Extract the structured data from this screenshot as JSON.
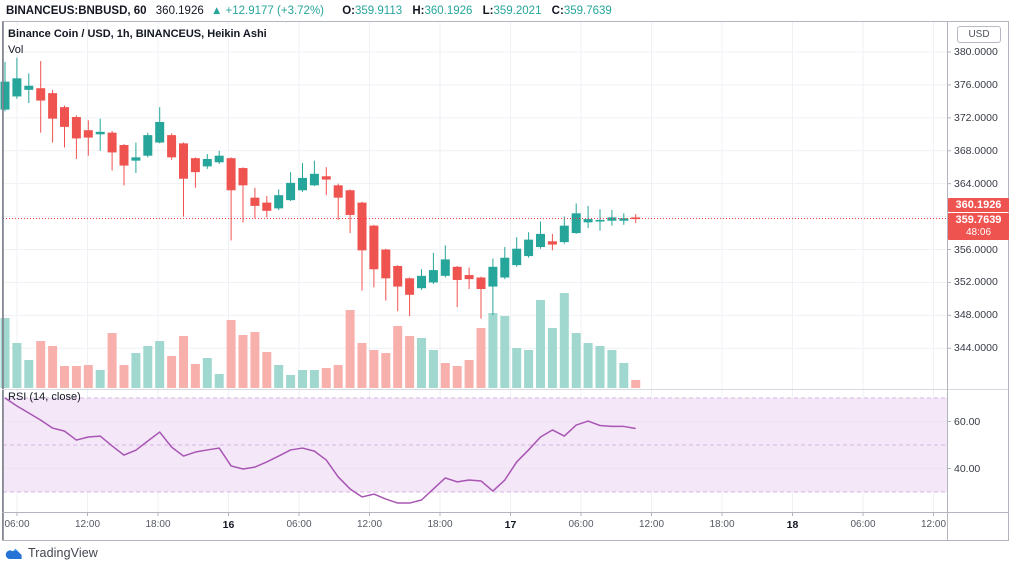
{
  "header": {
    "symbol": "BINANCEUS:BNBUSD, 60",
    "last": "360.1926",
    "direction": "▲",
    "change": "+12.9177 (+3.72%)",
    "o_label": "O:",
    "o": "359.9113",
    "h_label": "H:",
    "h": "360.1926",
    "l_label": "L:",
    "l": "359.2021",
    "c_label": "C:",
    "c": "359.7639"
  },
  "legend": {
    "title": "Binance Coin / USD, 1h, BINANCEUS, Heikin Ashi",
    "vol_label": "Vol",
    "rsi_label": "RSI (14, close)"
  },
  "price_axis": {
    "currency": "USD",
    "labels": [
      "380.0000",
      "376.0000",
      "372.0000",
      "368.0000",
      "364.0000",
      "356.0000",
      "352.0000",
      "348.0000",
      "344.0000"
    ],
    "values": [
      380,
      376,
      372,
      368,
      364,
      356,
      352,
      348,
      344
    ],
    "badges": [
      {
        "text": "360.1926",
        "price": 360.1926
      },
      {
        "text": "359.7639",
        "countdown": "48:06",
        "price": 359.7639
      }
    ]
  },
  "rsi_axis": {
    "labels": [
      "60.00",
      "40.00"
    ],
    "values": [
      60,
      40
    ]
  },
  "footer": {
    "brand": "TradingView"
  },
  "colors": {
    "up": "#26a69a",
    "down": "#ef5350",
    "vol_up": "#a0d7cf",
    "vol_down": "#f8b0ad",
    "rsi_line": "#a855b4",
    "rsi_band": "#f4e7f8",
    "rsi_dash": "#d9b6e3",
    "price_line": "#f23645",
    "grid": "#eef1f6",
    "frame": "#b2b5be",
    "accent_text": "#26a69a"
  },
  "chart_data": {
    "type": "candlestick",
    "title": "Binance Coin / USD, 1h, BINANCEUS, Heikin Ashi",
    "symbol": "BINANCEUS:BNBUSD",
    "interval_minutes": 60,
    "style": "Heikin Ashi",
    "price_range_visible": [
      344,
      380
    ],
    "last_price": 359.7639,
    "price_line": 359.7639,
    "rsi_levels": {
      "band": [
        30,
        70
      ],
      "mid": 50,
      "grid": [
        40,
        60
      ]
    },
    "time_ticks": [
      {
        "label": "06:00",
        "bold": false
      },
      {
        "label": "12:00",
        "bold": false
      },
      {
        "label": "18:00",
        "bold": false
      },
      {
        "label": "16",
        "bold": true
      },
      {
        "label": "06:00",
        "bold": false
      },
      {
        "label": "12:00",
        "bold": false
      },
      {
        "label": "18:00",
        "bold": false
      },
      {
        "label": "17",
        "bold": true
      },
      {
        "label": "06:00",
        "bold": false
      },
      {
        "label": "12:00",
        "bold": false
      },
      {
        "label": "18:00",
        "bold": false
      },
      {
        "label": "18",
        "bold": true
      },
      {
        "label": "06:00",
        "bold": false
      },
      {
        "label": "12:00",
        "bold": false
      }
    ],
    "candles": [
      [
        373.0,
        378.8,
        372.8,
        376.4
      ],
      [
        374.6,
        379.3,
        374.3,
        376.8
      ],
      [
        375.4,
        377.4,
        373.8,
        375.9
      ],
      [
        375.6,
        378.9,
        370.2,
        374.1
      ],
      [
        375.0,
        375.4,
        369.0,
        371.9
      ],
      [
        373.3,
        373.5,
        368.4,
        370.9
      ],
      [
        372.1,
        372.3,
        367.0,
        369.5
      ],
      [
        370.5,
        371.7,
        367.4,
        369.6
      ],
      [
        370.0,
        371.9,
        368.0,
        370.3
      ],
      [
        370.2,
        370.4,
        365.6,
        367.8
      ],
      [
        368.7,
        368.8,
        363.8,
        366.2
      ],
      [
        366.8,
        369.0,
        365.3,
        367.2
      ],
      [
        367.4,
        370.2,
        367.2,
        369.9
      ],
      [
        369.0,
        373.3,
        368.9,
        371.5
      ],
      [
        369.9,
        370.1,
        366.9,
        367.2
      ],
      [
        368.9,
        369.0,
        360.0,
        364.6
      ],
      [
        367.1,
        367.2,
        363.5,
        365.4
      ],
      [
        366.1,
        367.6,
        365.8,
        367.0
      ],
      [
        366.6,
        368.0,
        366.4,
        367.4
      ],
      [
        367.1,
        367.2,
        357.1,
        363.2
      ],
      [
        365.9,
        366.0,
        359.3,
        363.8
      ],
      [
        362.3,
        363.5,
        359.8,
        361.3
      ],
      [
        361.7,
        362.5,
        359.9,
        360.7
      ],
      [
        361.0,
        363.3,
        360.8,
        362.6
      ],
      [
        362.0,
        365.4,
        361.9,
        364.1
      ],
      [
        363.2,
        366.5,
        363.0,
        364.7
      ],
      [
        363.8,
        366.8,
        363.7,
        365.2
      ],
      [
        364.9,
        366.0,
        362.6,
        364.5
      ],
      [
        363.8,
        364.0,
        359.6,
        362.3
      ],
      [
        363.2,
        363.3,
        358.0,
        360.2
      ],
      [
        361.7,
        361.8,
        351.0,
        355.9
      ],
      [
        358.9,
        359.0,
        351.4,
        353.6
      ],
      [
        356.0,
        356.1,
        349.8,
        352.5
      ],
      [
        354.0,
        354.1,
        348.5,
        351.5
      ],
      [
        352.5,
        352.6,
        347.9,
        350.5
      ],
      [
        351.3,
        353.6,
        351.1,
        352.8
      ],
      [
        352.0,
        355.6,
        351.8,
        353.5
      ],
      [
        352.8,
        356.5,
        352.6,
        354.8
      ],
      [
        353.9,
        354.0,
        349.0,
        352.3
      ],
      [
        352.9,
        353.8,
        351.2,
        352.4
      ],
      [
        352.6,
        352.7,
        347.6,
        351.2
      ],
      [
        351.5,
        354.9,
        348.0,
        353.9
      ],
      [
        352.6,
        356.3,
        352.4,
        355.0
      ],
      [
        354.1,
        357.5,
        353.9,
        356.1
      ],
      [
        355.2,
        358.1,
        355.0,
        357.2
      ],
      [
        356.3,
        359.4,
        356.1,
        357.9
      ],
      [
        357.0,
        357.9,
        355.9,
        356.6
      ],
      [
        356.9,
        360.0,
        356.7,
        358.9
      ],
      [
        358.0,
        361.6,
        357.9,
        360.4
      ],
      [
        359.3,
        361.3,
        358.6,
        359.7
      ],
      [
        359.4,
        360.9,
        358.3,
        359.6
      ],
      [
        359.5,
        360.8,
        358.9,
        359.9
      ],
      [
        359.5,
        360.4,
        359.0,
        359.8
      ],
      [
        359.9,
        360.3,
        359.2,
        359.7
      ]
    ],
    "volume": [
      [
        70,
        1
      ],
      [
        45,
        1
      ],
      [
        28,
        1
      ],
      [
        47,
        0
      ],
      [
        42,
        0
      ],
      [
        22,
        0
      ],
      [
        22,
        0
      ],
      [
        23,
        0
      ],
      [
        18,
        1
      ],
      [
        55,
        0
      ],
      [
        23,
        0
      ],
      [
        35,
        1
      ],
      [
        42,
        1
      ],
      [
        47,
        1
      ],
      [
        32,
        0
      ],
      [
        52,
        0
      ],
      [
        24,
        0
      ],
      [
        30,
        1
      ],
      [
        14,
        1
      ],
      [
        68,
        0
      ],
      [
        53,
        0
      ],
      [
        56,
        0
      ],
      [
        36,
        0
      ],
      [
        23,
        1
      ],
      [
        13,
        1
      ],
      [
        18,
        1
      ],
      [
        18,
        1
      ],
      [
        20,
        0
      ],
      [
        23,
        0
      ],
      [
        78,
        0
      ],
      [
        45,
        0
      ],
      [
        38,
        0
      ],
      [
        35,
        0
      ],
      [
        62,
        0
      ],
      [
        52,
        0
      ],
      [
        50,
        1
      ],
      [
        38,
        1
      ],
      [
        25,
        0
      ],
      [
        22,
        0
      ],
      [
        28,
        0
      ],
      [
        60,
        0
      ],
      [
        75,
        1
      ],
      [
        72,
        1
      ],
      [
        40,
        1
      ],
      [
        38,
        1
      ],
      [
        88,
        1
      ],
      [
        60,
        1
      ],
      [
        95,
        1
      ],
      [
        55,
        1
      ],
      [
        45,
        1
      ],
      [
        42,
        1
      ],
      [
        38,
        1
      ],
      [
        25,
        1
      ],
      [
        8,
        0
      ]
    ],
    "rsi": [
      70,
      66.6,
      63.6,
      60.6,
      57.2,
      55.9,
      52.1,
      53.4,
      53.8,
      49.6,
      45.7,
      47.8,
      51.7,
      55.5,
      49.1,
      45.3,
      47,
      47.9,
      48.7,
      41.1,
      39.8,
      40.6,
      42.8,
      45.3,
      47.9,
      48.7,
      47.4,
      43.6,
      36.4,
      31.3,
      27.9,
      29.1,
      27,
      25.3,
      25.3,
      26.6,
      31.3,
      36,
      34.3,
      35.1,
      34.7,
      30.4,
      35.1,
      42.8,
      47.9,
      53.4,
      56.4,
      53.8,
      58.5,
      60.2,
      58.3,
      57.9,
      57.9,
      57
    ]
  }
}
